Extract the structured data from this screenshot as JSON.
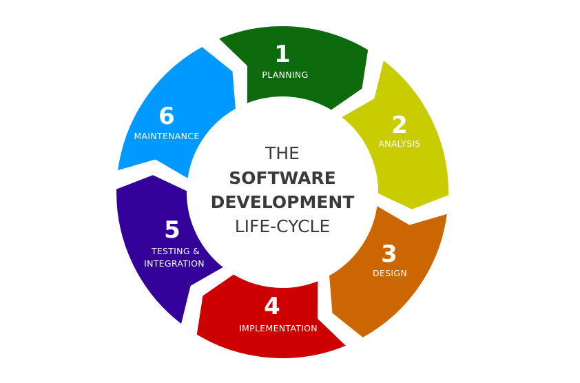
{
  "center": {
    "line1": "THE",
    "line2": "SOFTWARE",
    "line3": "DEVELOPMENT",
    "line4": "LIFE-CYCLE"
  },
  "stages": [
    {
      "number": "1",
      "label": "PLANNING",
      "color": "#0d6b0d"
    },
    {
      "number": "2",
      "label": "ANALYSIS",
      "color": "#c8cc00"
    },
    {
      "number": "3",
      "label": "DESIGN",
      "color": "#cc6600"
    },
    {
      "number": "4",
      "label": "IMPLEMENTATION",
      "color": "#cc0000"
    },
    {
      "number": "5",
      "label_line1": "TESTING &",
      "label_line2": "INTEGRATION",
      "color": "#330099"
    },
    {
      "number": "6",
      "label": "MAINTENANCE",
      "color": "#0099ff"
    }
  ],
  "colors": {
    "background": "#ffffff",
    "center_text": "#3a3a3a",
    "segment_text": "#ffffff"
  }
}
